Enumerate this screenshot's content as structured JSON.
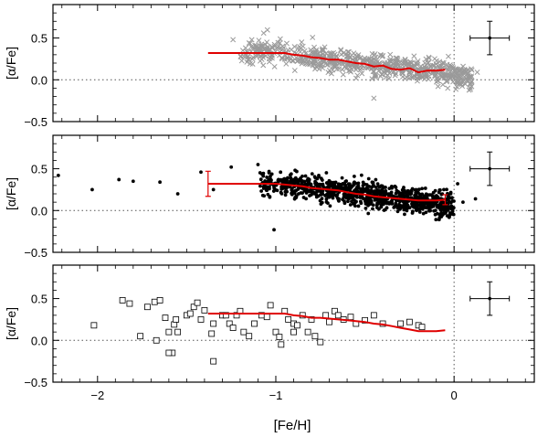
{
  "figure": {
    "xlabel": "[Fe/H]",
    "colors": {
      "axis": "#000000",
      "cross": "#9a9a9a",
      "dot": "#000000",
      "trend": "#e00000",
      "refline": "#555555"
    }
  },
  "chart_data": [
    {
      "type": "scatter",
      "title": "",
      "marker": "cross",
      "xlim": [
        -2.25,
        0.45
      ],
      "ylim": [
        -0.5,
        0.9
      ],
      "xticks": [
        -2,
        -1,
        0
      ],
      "xticklabels": [
        "",
        "",
        ""
      ],
      "yticks": [
        -0.5,
        0.0,
        0.5
      ],
      "yticklabels": [
        "−0.5",
        "0.0",
        "0.5"
      ],
      "xlabel": "",
      "ylabel": "[α/Fe]",
      "ref_lines": {
        "y": 0.0,
        "x": 0.0
      },
      "points": {
        "x_range": [
          -1.2,
          0.1
        ],
        "n": 700,
        "y_model": "0.33 - 0.26*max(0,[Fe/H]+1.0) + scatter 0.07",
        "seed": 11,
        "sample": [
          [
            -1.24,
            0.48
          ],
          [
            -1.15,
            0.44
          ],
          [
            -1.05,
            0.45
          ],
          [
            -0.62,
            0.32
          ],
          [
            -0.45,
            -0.22
          ],
          [
            0.03,
            0.12
          ],
          [
            0.13,
            0.09
          ]
        ]
      },
      "trend": {
        "x": [
          -1.38,
          -1.2,
          -1.0,
          -0.95,
          -0.9,
          -0.85,
          -0.8,
          -0.75,
          -0.7,
          -0.65,
          -0.6,
          -0.55,
          -0.5,
          -0.45,
          -0.4,
          -0.35,
          -0.3,
          -0.25,
          -0.2,
          -0.15,
          -0.1,
          -0.05
        ],
        "y": [
          0.32,
          0.32,
          0.32,
          0.32,
          0.3,
          0.29,
          0.27,
          0.26,
          0.24,
          0.24,
          0.22,
          0.2,
          0.19,
          0.16,
          0.17,
          0.13,
          0.12,
          0.14,
          0.09,
          0.11,
          0.11,
          0.12
        ]
      },
      "errorbars": [],
      "inset_error": {
        "x": 0.2,
        "y": 0.5,
        "xerr": 0.11,
        "yerr": 0.2
      }
    },
    {
      "type": "scatter",
      "title": "",
      "marker": "dot",
      "xlim": [
        -2.25,
        0.45
      ],
      "ylim": [
        -0.5,
        0.9
      ],
      "xticks": [
        -2,
        -1,
        0
      ],
      "xticklabels": [
        "",
        "",
        ""
      ],
      "yticks": [
        -0.5,
        0.0,
        0.5
      ],
      "yticklabels": [
        "−0.5",
        "0.0",
        "0.5"
      ],
      "xlabel": "",
      "ylabel": "[α/Fe]",
      "ref_lines": {
        "y": 0.0,
        "x": 0.0
      },
      "points": {
        "x_range": [
          -1.1,
          0.0
        ],
        "n": 1000,
        "y_model": "0.33 - 0.27*max(0,[Fe/H]+1.0) + scatter 0.08",
        "seed": 29,
        "sample": [
          [
            -2.22,
            0.42
          ],
          [
            -2.03,
            0.25
          ],
          [
            -1.88,
            0.37
          ],
          [
            -1.8,
            0.35
          ],
          [
            -1.65,
            0.34
          ],
          [
            -1.55,
            0.2
          ],
          [
            -1.42,
            0.46
          ],
          [
            -1.35,
            0.25
          ],
          [
            -1.01,
            -0.23
          ],
          [
            -1.25,
            0.52
          ],
          [
            -1.1,
            0.55
          ],
          [
            0.05,
            0.1
          ],
          [
            0.12,
            0.14
          ],
          [
            0.02,
            0.32
          ]
        ]
      },
      "trend": {
        "x": [
          -1.38,
          -1.2,
          -1.0,
          -0.95,
          -0.9,
          -0.85,
          -0.8,
          -0.75,
          -0.7,
          -0.65,
          -0.6,
          -0.55,
          -0.5,
          -0.45,
          -0.4,
          -0.35,
          -0.3,
          -0.25,
          -0.2,
          -0.15,
          -0.1,
          -0.05
        ],
        "y": [
          0.32,
          0.32,
          0.32,
          0.31,
          0.3,
          0.29,
          0.27,
          0.26,
          0.25,
          0.24,
          0.22,
          0.2,
          0.19,
          0.17,
          0.16,
          0.15,
          0.14,
          0.13,
          0.12,
          0.12,
          0.12,
          0.13
        ]
      },
      "errorbars": [
        {
          "x": -1.38,
          "y": 0.32,
          "err": 0.15
        },
        {
          "x": -0.05,
          "y": 0.13,
          "err": 0.06
        }
      ],
      "inset_error": {
        "x": 0.2,
        "y": 0.5,
        "xerr": 0.11,
        "yerr": 0.2
      }
    },
    {
      "type": "scatter",
      "title": "",
      "marker": "square",
      "xlim": [
        -2.25,
        0.45
      ],
      "ylim": [
        -0.5,
        0.9
      ],
      "xticks": [
        -2,
        -1,
        0
      ],
      "xticklabels": [
        "−2",
        "−1",
        "0"
      ],
      "yticks": [
        -0.5,
        0.0,
        0.5
      ],
      "yticklabels": [
        "−0.5",
        "0.0",
        "0.5"
      ],
      "xlabel": "[Fe/H]",
      "ylabel": "[α/Fe]",
      "ref_lines": {
        "y": 0.0,
        "x": 0.0
      },
      "points": {
        "data": [
          [
            -2.02,
            0.18
          ],
          [
            -1.86,
            0.48
          ],
          [
            -1.82,
            0.44
          ],
          [
            -1.76,
            0.05
          ],
          [
            -1.72,
            0.4
          ],
          [
            -1.68,
            0.46
          ],
          [
            -1.67,
            0.0
          ],
          [
            -1.65,
            0.48
          ],
          [
            -1.62,
            0.27
          ],
          [
            -1.6,
            0.1
          ],
          [
            -1.58,
            -0.15
          ],
          [
            -1.57,
            0.19
          ],
          [
            -1.56,
            0.25
          ],
          [
            -1.55,
            0.1
          ],
          [
            -1.5,
            0.3
          ],
          [
            -1.48,
            0.32
          ],
          [
            -1.46,
            0.4
          ],
          [
            -1.44,
            0.45
          ],
          [
            -1.42,
            0.25
          ],
          [
            -1.4,
            0.36
          ],
          [
            -1.36,
            0.08
          ],
          [
            -1.35,
            0.2
          ],
          [
            -1.35,
            -0.25
          ],
          [
            -1.3,
            0.3
          ],
          [
            -1.28,
            0.3
          ],
          [
            -1.26,
            0.2
          ],
          [
            -1.24,
            0.15
          ],
          [
            -1.22,
            0.3
          ],
          [
            -1.2,
            0.35
          ],
          [
            -1.18,
            0.1
          ],
          [
            -1.15,
            0.05
          ],
          [
            -1.12,
            0.2
          ],
          [
            -1.08,
            0.3
          ],
          [
            -1.05,
            0.28
          ],
          [
            -1.03,
            0.42
          ],
          [
            -1.0,
            0.1
          ],
          [
            -0.98,
            0.04
          ],
          [
            -0.97,
            -0.05
          ],
          [
            -0.95,
            0.35
          ],
          [
            -0.93,
            0.25
          ],
          [
            -0.9,
            0.2
          ],
          [
            -0.88,
            0.18
          ],
          [
            -0.85,
            0.3
          ],
          [
            -0.82,
            0.1
          ],
          [
            -0.8,
            0.25
          ],
          [
            -0.78,
            0.05
          ],
          [
            -0.75,
            -0.02
          ],
          [
            -0.72,
            0.3
          ],
          [
            -0.7,
            0.22
          ],
          [
            -0.67,
            0.35
          ],
          [
            -0.65,
            0.3
          ],
          [
            -0.62,
            0.25
          ],
          [
            -0.58,
            0.28
          ],
          [
            -0.55,
            0.2
          ],
          [
            -0.5,
            0.24
          ],
          [
            -0.45,
            0.3
          ],
          [
            -0.4,
            0.2
          ],
          [
            -0.3,
            0.2
          ],
          [
            -0.25,
            0.22
          ],
          [
            -0.2,
            0.18
          ],
          [
            -0.18,
            0.16
          ],
          [
            -0.9,
            0.1
          ],
          [
            -1.6,
            -0.15
          ]
        ]
      },
      "trend": {
        "x": [
          -1.38,
          -1.2,
          -1.0,
          -0.95,
          -0.9,
          -0.85,
          -0.8,
          -0.75,
          -0.7,
          -0.65,
          -0.6,
          -0.55,
          -0.5,
          -0.45,
          -0.4,
          -0.35,
          -0.3,
          -0.25,
          -0.2,
          -0.15,
          -0.1,
          -0.05
        ],
        "y": [
          0.32,
          0.32,
          0.32,
          0.32,
          0.3,
          0.29,
          0.27,
          0.27,
          0.26,
          0.25,
          0.24,
          0.23,
          0.22,
          0.2,
          0.19,
          0.17,
          0.15,
          0.13,
          0.11,
          0.11,
          0.11,
          0.12
        ]
      },
      "errorbars": [],
      "inset_error": {
        "x": 0.2,
        "y": 0.5,
        "xerr": 0.11,
        "yerr": 0.2
      }
    }
  ]
}
